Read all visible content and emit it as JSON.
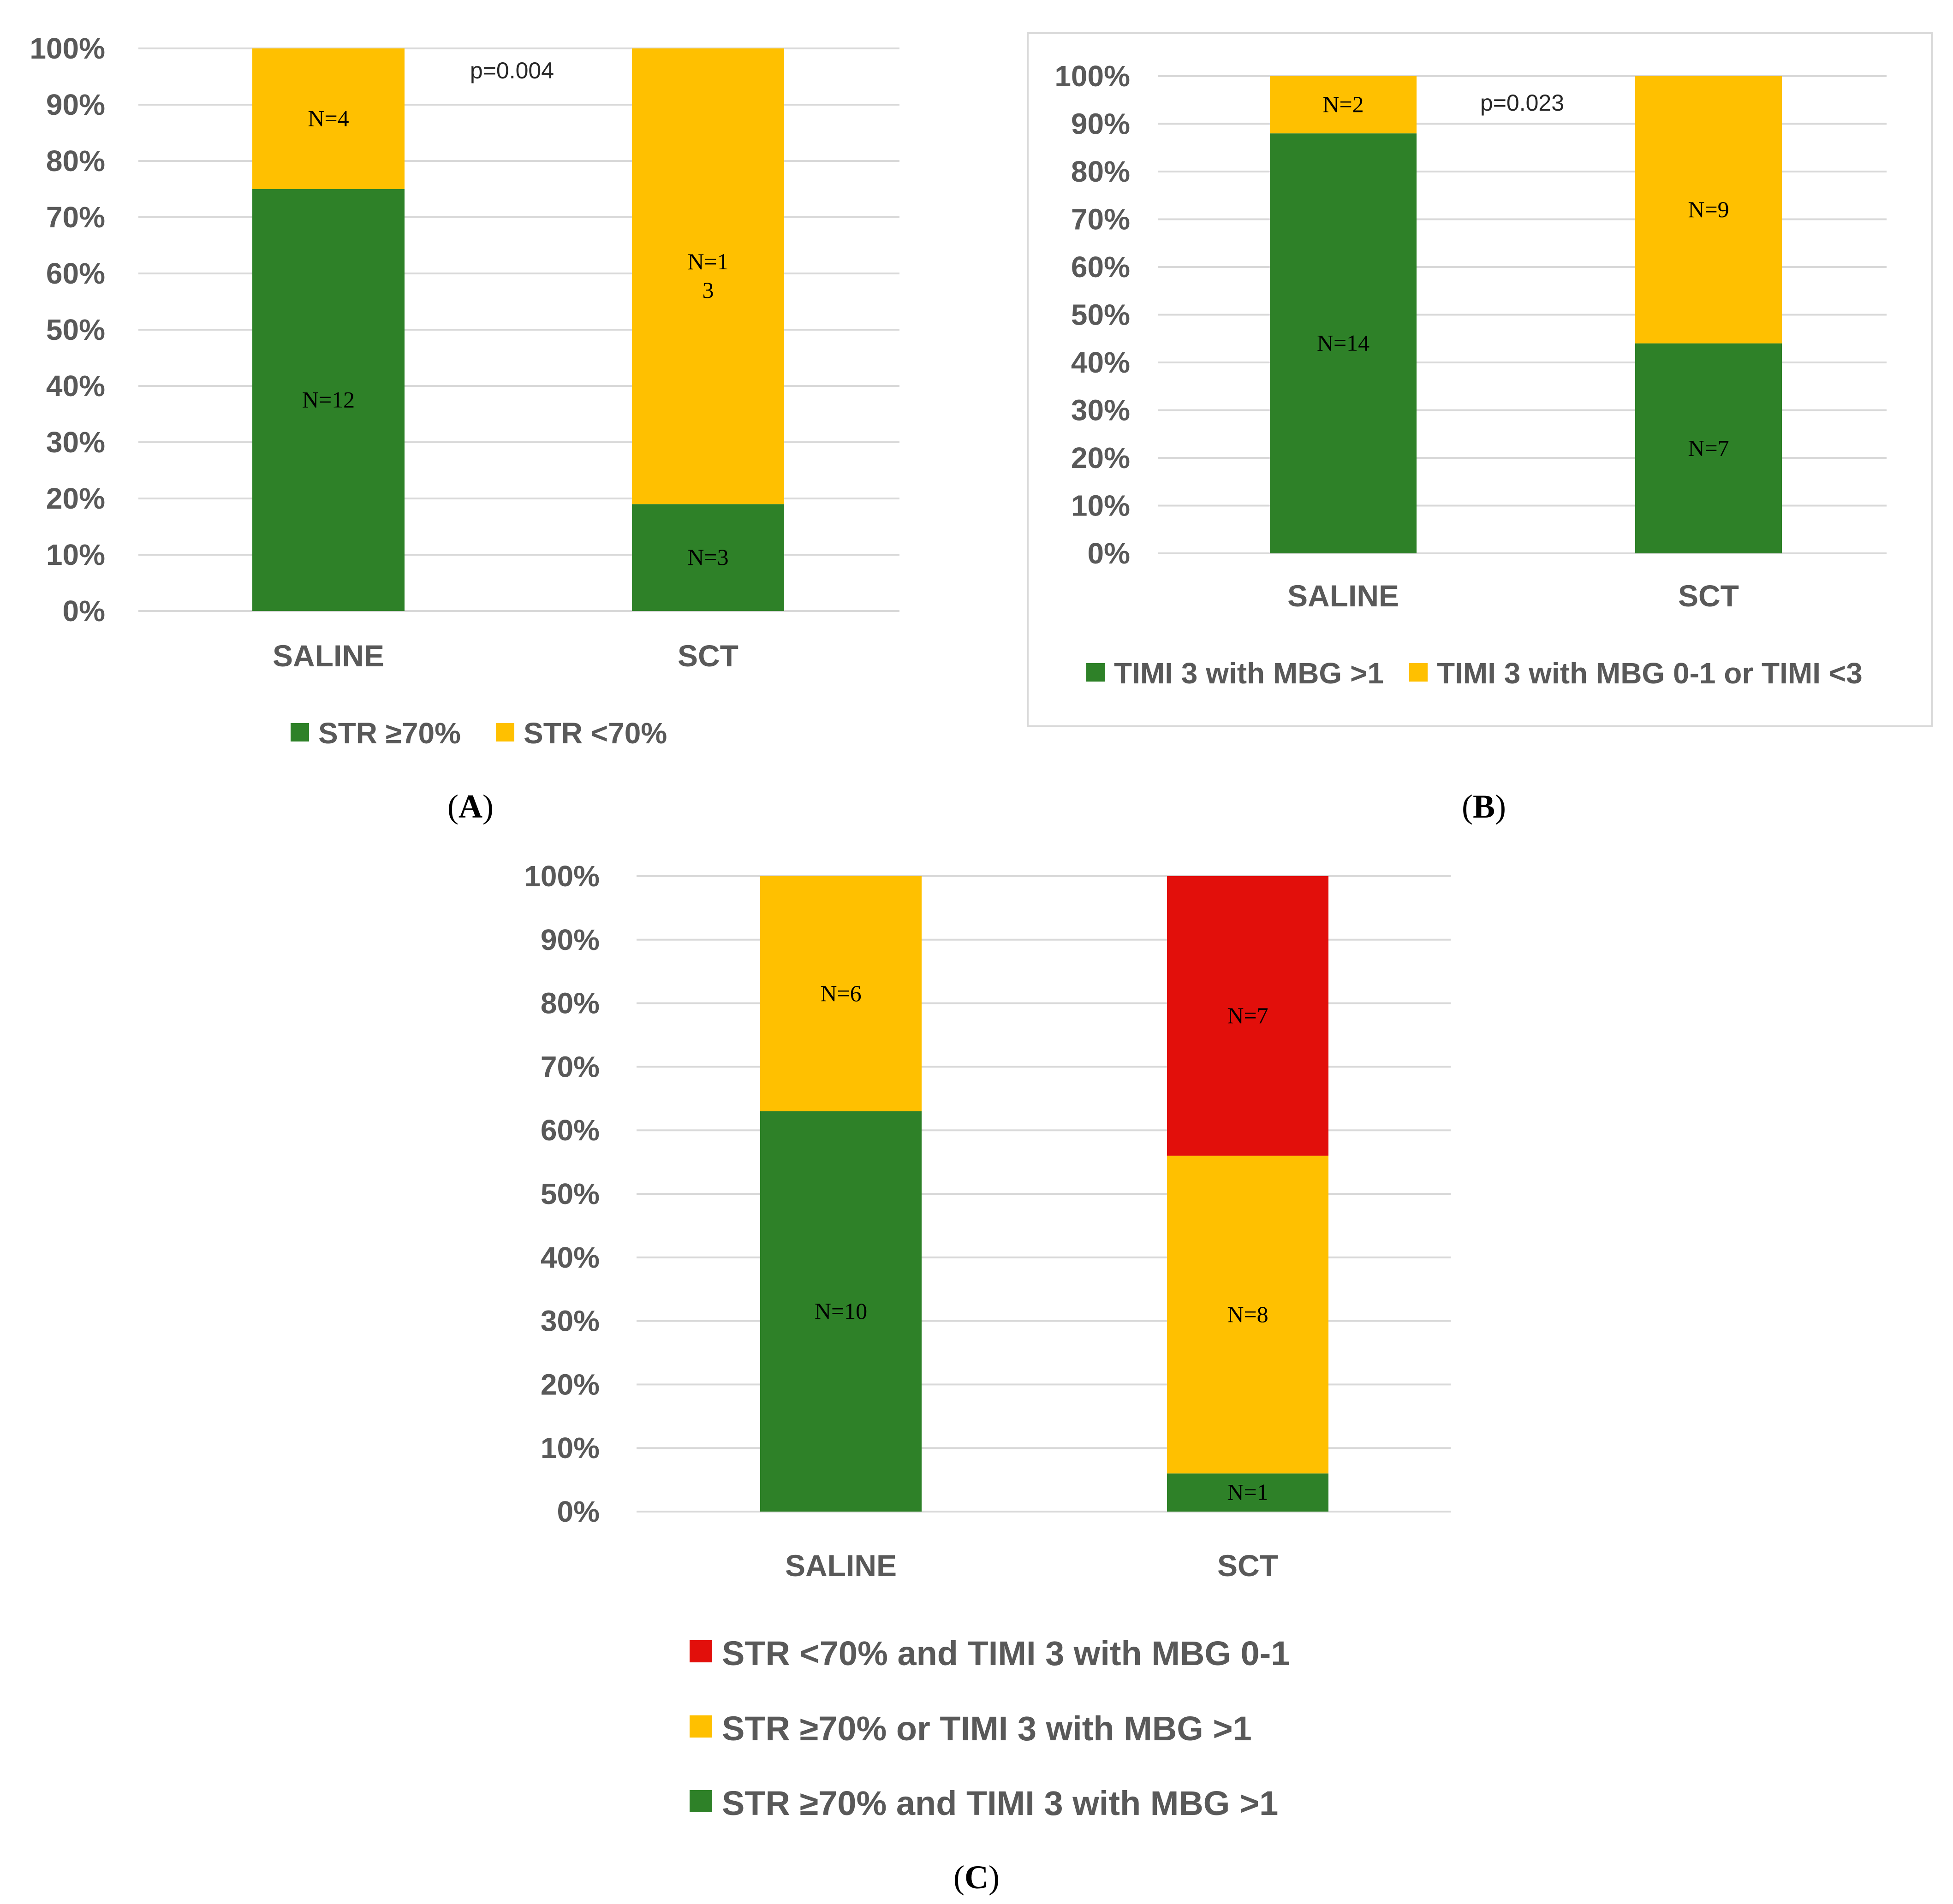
{
  "figure": {
    "panel_labels": [
      "A",
      "B",
      "C"
    ]
  },
  "colors": {
    "green": "#2e8128",
    "yellow": "#ffc000",
    "red": "#e20f0b",
    "grid": "#d9d9d9",
    "text": "#595959"
  },
  "chart_data": [
    {
      "panel": "A",
      "type": "bar",
      "stacked": true,
      "categories": [
        "SALINE",
        "SCT"
      ],
      "series": [
        {
          "name": "STR ≥70%",
          "color": "green",
          "values": [
            75,
            19
          ],
          "labels": [
            "N=12",
            "N=3"
          ]
        },
        {
          "name": "STR <70%",
          "color": "yellow",
          "values": [
            25,
            81
          ],
          "labels": [
            "N=4",
            "N=1\n3"
          ]
        }
      ],
      "yticks": [
        "0%",
        "10%",
        "20%",
        "30%",
        "40%",
        "50%",
        "60%",
        "70%",
        "80%",
        "90%",
        "100%"
      ],
      "ylim": [
        0,
        100
      ],
      "annotation": "p=0.004",
      "legend": "bottom",
      "bordered": false
    },
    {
      "panel": "B",
      "type": "bar",
      "stacked": true,
      "categories": [
        "SALINE",
        "SCT"
      ],
      "series": [
        {
          "name": "TIMI 3 with MBG >1",
          "color": "green",
          "values": [
            88,
            44
          ],
          "labels": [
            "N=14",
            "N=7"
          ]
        },
        {
          "name": "TIMI 3 with MBG 0-1 or TIMI <3",
          "color": "yellow",
          "values": [
            12,
            56
          ],
          "labels": [
            "N=2",
            "N=9"
          ]
        }
      ],
      "yticks": [
        "0%",
        "10%",
        "20%",
        "30%",
        "40%",
        "50%",
        "60%",
        "70%",
        "80%",
        "90%",
        "100%"
      ],
      "ylim": [
        0,
        100
      ],
      "annotation": "p=0.023",
      "legend": "bottom",
      "bordered": true
    },
    {
      "panel": "C",
      "type": "bar",
      "stacked": true,
      "categories": [
        "SALINE",
        "SCT"
      ],
      "series": [
        {
          "name": "STR ≥70% and TIMI 3 with MBG >1",
          "color": "green",
          "values": [
            63,
            6
          ],
          "labels": [
            "N=10",
            "N=1"
          ]
        },
        {
          "name": "STR ≥70% or TIMI 3 with MBG >1",
          "color": "yellow",
          "values": [
            37,
            50
          ],
          "labels": [
            "N=6",
            "N=8"
          ]
        },
        {
          "name": "STR <70% and TIMI 3 with MBG 0-1",
          "color": "red",
          "values": [
            0,
            44
          ],
          "labels": [
            "",
            "N=7"
          ]
        }
      ],
      "yticks": [
        "0%",
        "10%",
        "20%",
        "30%",
        "40%",
        "50%",
        "60%",
        "70%",
        "80%",
        "90%",
        "100%"
      ],
      "ylim": [
        0,
        100
      ],
      "annotation": "",
      "legend": "bottom-vertical-reversed",
      "bordered": false
    }
  ]
}
